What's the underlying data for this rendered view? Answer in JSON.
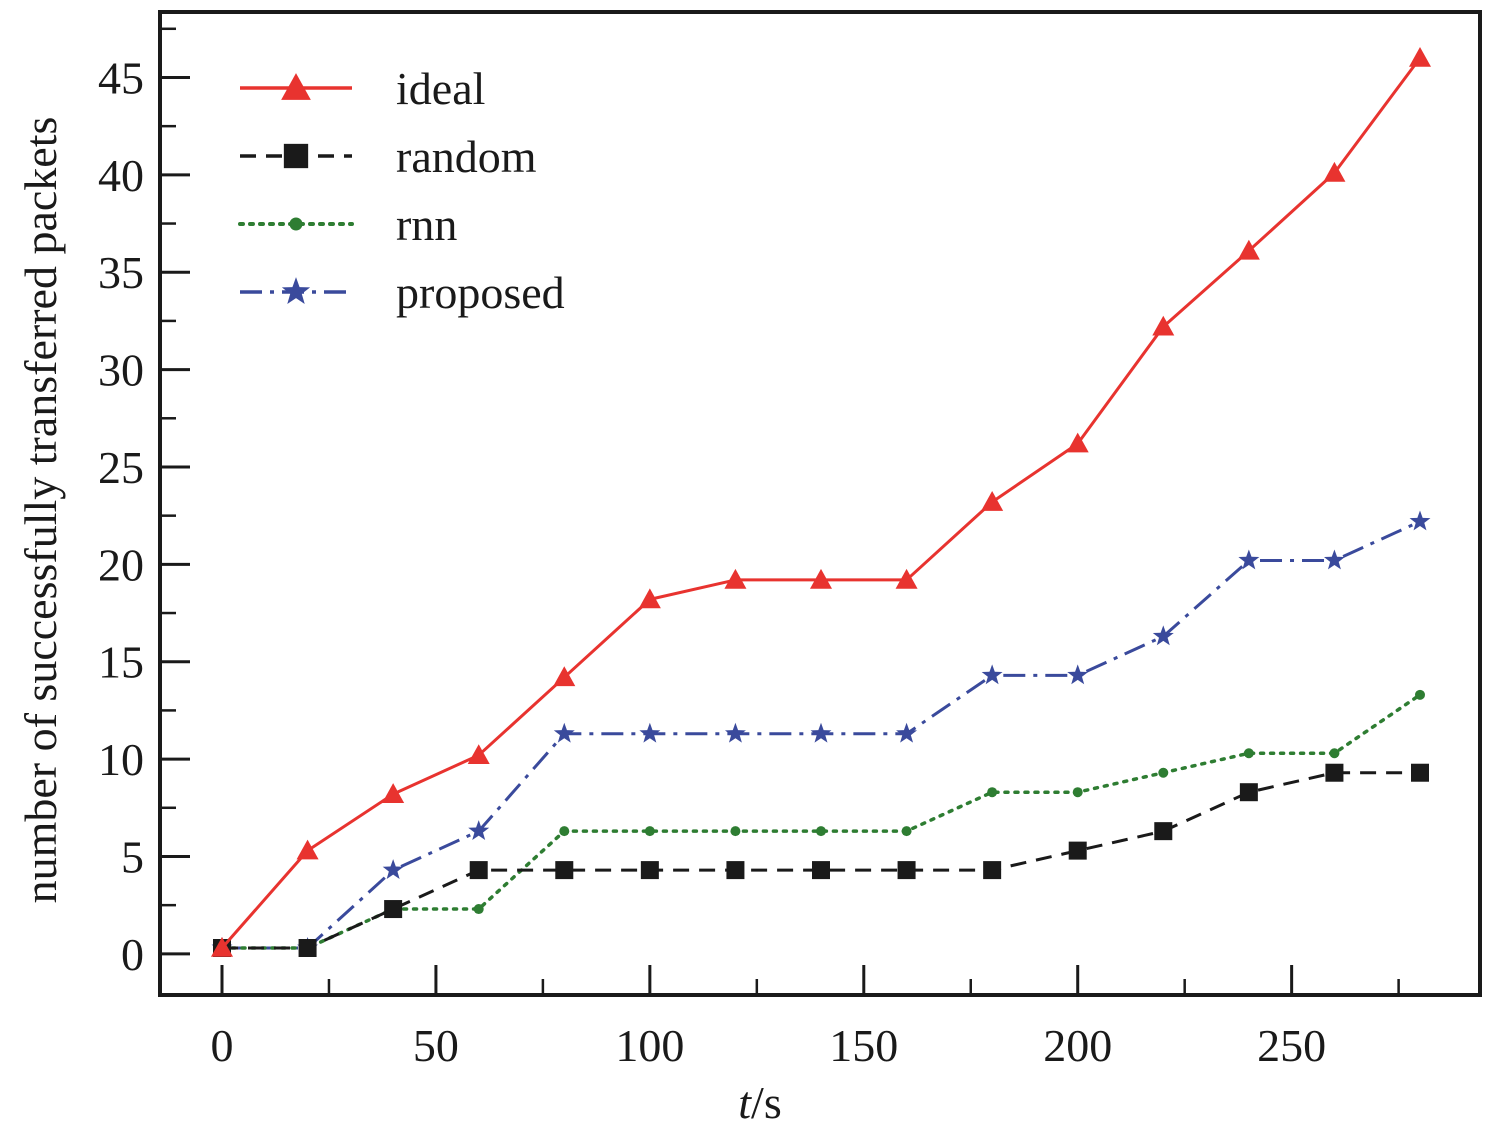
{
  "chart_data": {
    "type": "line",
    "xlabel": "t/s",
    "xlabel_parts": {
      "italic": "t",
      "rest": "/s"
    },
    "ylabel": "number of successfully transferred packets",
    "xlim": [
      -15,
      295
    ],
    "ylim": [
      -2,
      48
    ],
    "xticks": [
      0,
      50,
      100,
      150,
      200,
      250
    ],
    "yticks": [
      0,
      5,
      10,
      15,
      20,
      25,
      30,
      35,
      40,
      45
    ],
    "grid": false,
    "legend_position": "top-left",
    "x": [
      0,
      20,
      40,
      60,
      80,
      100,
      120,
      140,
      160,
      180,
      200,
      220,
      240,
      260,
      280
    ],
    "series": [
      {
        "name": "ideal",
        "color": "#e8332f",
        "line_style": "solid",
        "marker": "triangle",
        "values": [
          0.3,
          5.3,
          8.2,
          10.2,
          14.2,
          18.2,
          19.2,
          19.2,
          19.2,
          23.2,
          26.2,
          32.2,
          36.1,
          40.1,
          46.0
        ]
      },
      {
        "name": "random",
        "color": "#1a1a1a",
        "line_style": "dashed",
        "marker": "square",
        "values": [
          0.3,
          0.3,
          2.3,
          4.3,
          4.3,
          4.3,
          4.3,
          4.3,
          4.3,
          4.3,
          5.3,
          6.3,
          8.3,
          9.3,
          9.3
        ]
      },
      {
        "name": "rnn",
        "color": "#2e7d32",
        "line_style": "dotted",
        "marker": "circle",
        "values": [
          0.3,
          0.3,
          2.3,
          2.3,
          6.3,
          6.3,
          6.3,
          6.3,
          6.3,
          8.3,
          8.3,
          9.3,
          10.3,
          10.3,
          13.3
        ]
      },
      {
        "name": "proposed",
        "color": "#3a4a9c",
        "line_style": "dashdot",
        "marker": "star",
        "values": [
          0.3,
          0.3,
          4.3,
          6.3,
          11.3,
          11.3,
          11.3,
          11.3,
          11.3,
          14.3,
          14.3,
          16.3,
          20.2,
          20.2,
          22.2
        ]
      }
    ]
  }
}
